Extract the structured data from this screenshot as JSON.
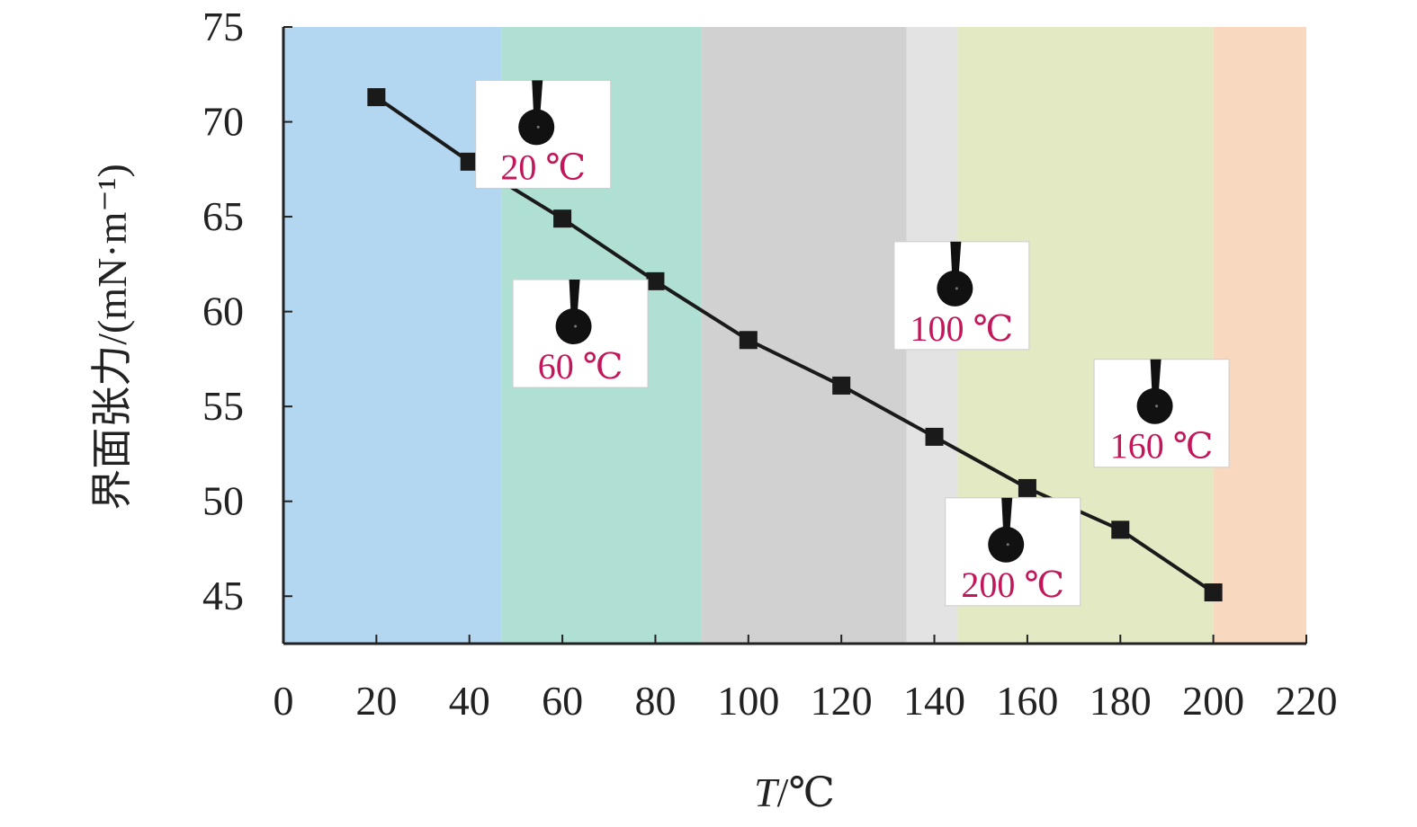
{
  "chart_data": {
    "type": "line",
    "xlabel_var": "T",
    "xlabel_unit": "/℃",
    "ylabel": "界面张力/(mN·m⁻¹)",
    "xlim": [
      0,
      220
    ],
    "ylim": [
      42.5,
      75
    ],
    "x_ticks": [
      "0",
      "20",
      "40",
      "60",
      "80",
      "100",
      "120",
      "140",
      "160",
      "180",
      "200",
      "220"
    ],
    "y_ticks": [
      "75",
      "70",
      "65",
      "60",
      "55",
      "50",
      "45"
    ],
    "grid": false,
    "series": [
      {
        "marker": "square",
        "color": "#1a1a1a",
        "x": [
          20,
          40,
          60,
          80,
          100,
          120,
          140,
          160,
          180,
          200
        ],
        "y": [
          71.3,
          67.9,
          64.9,
          61.6,
          58.5,
          56.1,
          53.4,
          50.7,
          48.5,
          45.2
        ]
      }
    ],
    "background_bands": [
      {
        "from": 0,
        "to": 47,
        "color": "#b3d7f0"
      },
      {
        "from": 47,
        "to": 90,
        "color": "#b0e0d3"
      },
      {
        "from": 90,
        "to": 134,
        "color": "#d1d1d1"
      },
      {
        "from": 134,
        "to": 145,
        "color": "#e3e3e3"
      },
      {
        "from": 145,
        "to": 200,
        "color": "#e3e9c3"
      },
      {
        "from": 200,
        "to": 220,
        "color": "#f8d8bf"
      }
    ],
    "insets": [
      {
        "label": "20 ℃",
        "label_color": "#c2185b",
        "droplet": "droplet-icon",
        "anchor_x": 40,
        "anchor_y": 71
      },
      {
        "label": "60 ℃",
        "label_color": "#c2185b",
        "droplet": "droplet-icon",
        "anchor_x": 48,
        "anchor_y": 60.5
      },
      {
        "label": "100 ℃",
        "label_color": "#c2185b",
        "droplet": "droplet-icon",
        "anchor_x": 130,
        "anchor_y": 62.5
      },
      {
        "label": "160 ℃",
        "label_color": "#c2185b",
        "droplet": "droplet-icon",
        "anchor_x": 173,
        "anchor_y": 56.3
      },
      {
        "label": "200 ℃",
        "label_color": "#c2185b",
        "droplet": "droplet-icon",
        "anchor_x": 141,
        "anchor_y": 49
      }
    ]
  }
}
